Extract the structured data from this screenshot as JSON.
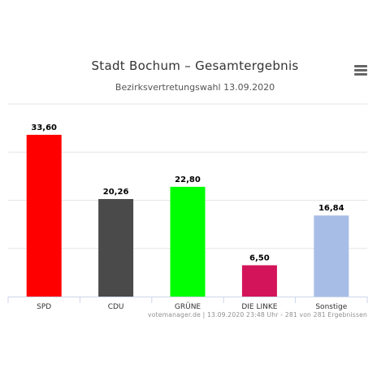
{
  "header": {
    "title": "Stadt Bochum – Gesamtergebnis",
    "subtitle": "Bezirksvertretungswahl 13.09.2020"
  },
  "menu": {
    "icon": "hamburger-menu-icon"
  },
  "credits": "votemanager.de | 13.09.2020 23:48 Uhr - 281 von 281 Ergebnissen",
  "chart_data": {
    "type": "bar",
    "title": "Stadt Bochum – Gesamtergebnis",
    "subtitle": "Bezirksvertretungswahl 13.09.2020",
    "categories": [
      "SPD",
      "CDU",
      "GRÜNE",
      "DIE LINKE",
      "Sonstige"
    ],
    "values": [
      33.6,
      20.26,
      22.8,
      6.5,
      16.84
    ],
    "data_labels": [
      "33,60",
      "20,26",
      "22,80",
      "6,50",
      "16,84"
    ],
    "colors": [
      "#ff0000",
      "#4a4a4a",
      "#00ff00",
      "#d3145a",
      "#a8bde6"
    ],
    "ylim": [
      0,
      40
    ],
    "gridlines": [
      0,
      10,
      20,
      30,
      40
    ],
    "grid": true,
    "legend": "none",
    "xlabel": "",
    "ylabel": ""
  }
}
